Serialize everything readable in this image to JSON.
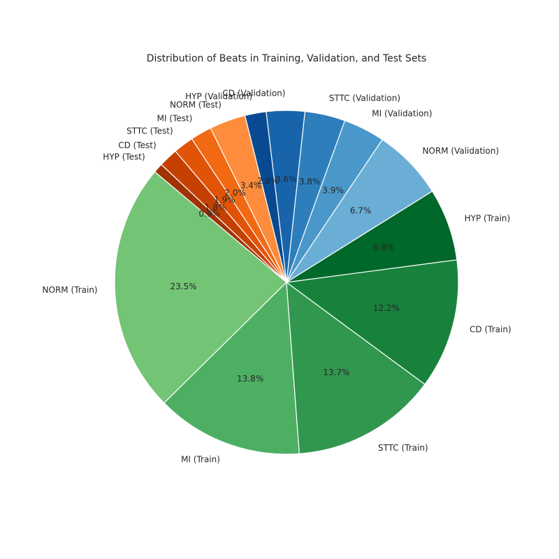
{
  "chart_data": {
    "type": "pie",
    "title": "Distribution of Beats in Training, Validation, and Test Sets",
    "slices": [
      {
        "label": "NORM (Train)",
        "value": 23.5,
        "pct_label": "23.5%",
        "color": "#74c476"
      },
      {
        "label": "MI (Train)",
        "value": 13.8,
        "pct_label": "13.8%",
        "color": "#4daf62"
      },
      {
        "label": "STTC (Train)",
        "value": 13.7,
        "pct_label": "13.7%",
        "color": "#31974f"
      },
      {
        "label": "CD (Train)",
        "value": 12.2,
        "pct_label": "12.2%",
        "color": "#18823d"
      },
      {
        "label": "HYP (Train)",
        "value": 6.8,
        "pct_label": "6.8%",
        "color": "#00682b"
      },
      {
        "label": "NORM (Validation)",
        "value": 6.7,
        "pct_label": "6.7%",
        "color": "#6aaed6"
      },
      {
        "label": "MI (Validation)",
        "value": 3.9,
        "pct_label": "3.9%",
        "color": "#4a98c9"
      },
      {
        "label": "STTC (Validation)",
        "value": 3.8,
        "pct_label": "3.8%",
        "color": "#2e7ebc"
      },
      {
        "label": "CD (Validation)",
        "value": 3.6,
        "pct_label": "3.6%",
        "color": "#1764ab"
      },
      {
        "label": "HYP (Validation)",
        "value": 2.0,
        "pct_label": "2.0%",
        "color": "#084a91"
      },
      {
        "label": "NORM (Test)",
        "value": 3.4,
        "pct_label": "3.4%",
        "color": "#fd8d3c"
      },
      {
        "label": "MI (Test)",
        "value": 2.0,
        "pct_label": "2.0%",
        "color": "#f16913"
      },
      {
        "label": "STTC (Test)",
        "value": 1.9,
        "pct_label": "1.9%",
        "color": "#e15307"
      },
      {
        "label": "CD (Test)",
        "value": 1.8,
        "pct_label": "1.8%",
        "color": "#c54102"
      },
      {
        "label": "HYP (Test)",
        "value": 0.9,
        "pct_label": "0.9%",
        "color": "#9f3303"
      }
    ],
    "start_angle_deg": 140,
    "direction": "counterclockwise",
    "edge_color": "#ffffff"
  }
}
